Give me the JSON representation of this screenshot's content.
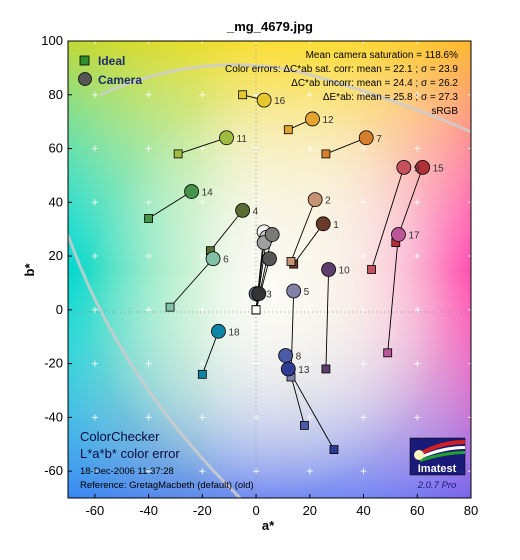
{
  "chart_data": {
    "type": "scatter",
    "title": "_mg_4679.jpg",
    "xlabel": "a*",
    "ylabel": "b*",
    "xlim": [
      -70,
      80
    ],
    "ylim": [
      -70,
      100
    ],
    "xticks": [
      "-60",
      "-40",
      "-20",
      "0",
      "20",
      "40",
      "60",
      "80"
    ],
    "yticks": [
      "-60",
      "-40",
      "-20",
      "0",
      "20",
      "40",
      "60",
      "80",
      "100"
    ],
    "legend": [
      {
        "label": "Ideal",
        "marker": "square",
        "color": "#2e8f2e"
      },
      {
        "label": "Camera",
        "marker": "circle",
        "color": "#555555"
      }
    ],
    "legend_position": "top-left",
    "annotations": {
      "line1": "Mean camera saturation = 118.6%",
      "line2": "Color errors:  ΔC*ab sat. corr:  mean = 22.1 ;  σ = 23.9",
      "line3": "ΔC*ab uncorr:  mean = 24.4 ;  σ = 26.2",
      "line4": "ΔE*ab:  mean = 25.8 ;  σ = 27.3",
      "line5": "sRGB"
    },
    "footer": {
      "chart_name": "ColorChecker",
      "subtitle": "L*a*b* color error",
      "date": "18-Dec-2006 11:37:28",
      "reference": "Reference: GretagMacbeth (default) (old)"
    },
    "logo": {
      "name": "Imatest",
      "version": "2.0.7  Pro"
    },
    "patches": [
      {
        "id": "1",
        "ideal": [
          14,
          17
        ],
        "camera": [
          25,
          32
        ],
        "color": "#6b3b2a"
      },
      {
        "id": "2",
        "ideal": [
          13,
          18
        ],
        "camera": [
          22,
          41
        ],
        "color": "#c79473"
      },
      {
        "id": "3",
        "ideal": [
          0,
          6
        ],
        "camera": [
          0,
          6
        ],
        "color": "#5e6e88"
      },
      {
        "id": "4",
        "ideal": [
          -17,
          22
        ],
        "camera": [
          -5,
          37
        ],
        "color": "#5a6b33"
      },
      {
        "id": "5",
        "ideal": [
          13,
          -25
        ],
        "camera": [
          14,
          7
        ],
        "color": "#8080a8"
      },
      {
        "id": "6",
        "ideal": [
          -32,
          1
        ],
        "camera": [
          -16,
          19
        ],
        "color": "#80c0a8"
      },
      {
        "id": "7",
        "ideal": [
          26,
          58
        ],
        "camera": [
          41,
          64
        ],
        "color": "#d87f2e"
      },
      {
        "id": "8",
        "ideal": [
          18,
          -43
        ],
        "camera": [
          11,
          -17
        ],
        "color": "#4a5aa4"
      },
      {
        "id": "9",
        "ideal": [
          43,
          15
        ],
        "camera": [
          55,
          53
        ],
        "color": "#c5515e"
      },
      {
        "id": "10",
        "ideal": [
          26,
          -22
        ],
        "camera": [
          27,
          15
        ],
        "color": "#5e3c6b"
      },
      {
        "id": "11",
        "ideal": [
          -29,
          58
        ],
        "camera": [
          -11,
          64
        ],
        "color": "#a0bc40"
      },
      {
        "id": "12",
        "ideal": [
          12,
          67
        ],
        "camera": [
          21,
          71
        ],
        "color": "#e3a32e"
      },
      {
        "id": "13",
        "ideal": [
          29,
          -52
        ],
        "camera": [
          12,
          -22
        ],
        "color": "#2e3d92"
      },
      {
        "id": "14",
        "ideal": [
          -40,
          34
        ],
        "camera": [
          -24,
          44
        ],
        "color": "#46944a"
      },
      {
        "id": "15",
        "ideal": [
          52,
          25
        ],
        "camera": [
          62,
          53
        ],
        "color": "#b0303a"
      },
      {
        "id": "16",
        "ideal": [
          -5,
          80
        ],
        "camera": [
          3,
          78
        ],
        "color": "#e6c82e"
      },
      {
        "id": "17",
        "ideal": [
          49,
          -16
        ],
        "camera": [
          53,
          28
        ],
        "color": "#bb5698"
      },
      {
        "id": "18",
        "ideal": [
          -20,
          -24
        ],
        "camera": [
          -14,
          -8
        ],
        "color": "#0c86a4"
      },
      {
        "id": "",
        "ideal": [
          0,
          0
        ],
        "camera": [
          3,
          29
        ],
        "color": "#f3f3f2"
      },
      {
        "id": "",
        "ideal": [
          0,
          0
        ],
        "camera": [
          4,
          27
        ],
        "color": "#c8c8c8"
      },
      {
        "id": "",
        "ideal": [
          0,
          0
        ],
        "camera": [
          3,
          25
        ],
        "color": "#a0a0a0"
      },
      {
        "id": "",
        "ideal": [
          0,
          0
        ],
        "camera": [
          6,
          28
        ],
        "color": "#7a7a79"
      },
      {
        "id": "",
        "ideal": [
          0,
          0
        ],
        "camera": [
          5,
          19
        ],
        "color": "#555555"
      },
      {
        "id": "",
        "ideal": [
          0,
          0
        ],
        "camera": [
          1,
          6
        ],
        "color": "#343434"
      }
    ]
  }
}
